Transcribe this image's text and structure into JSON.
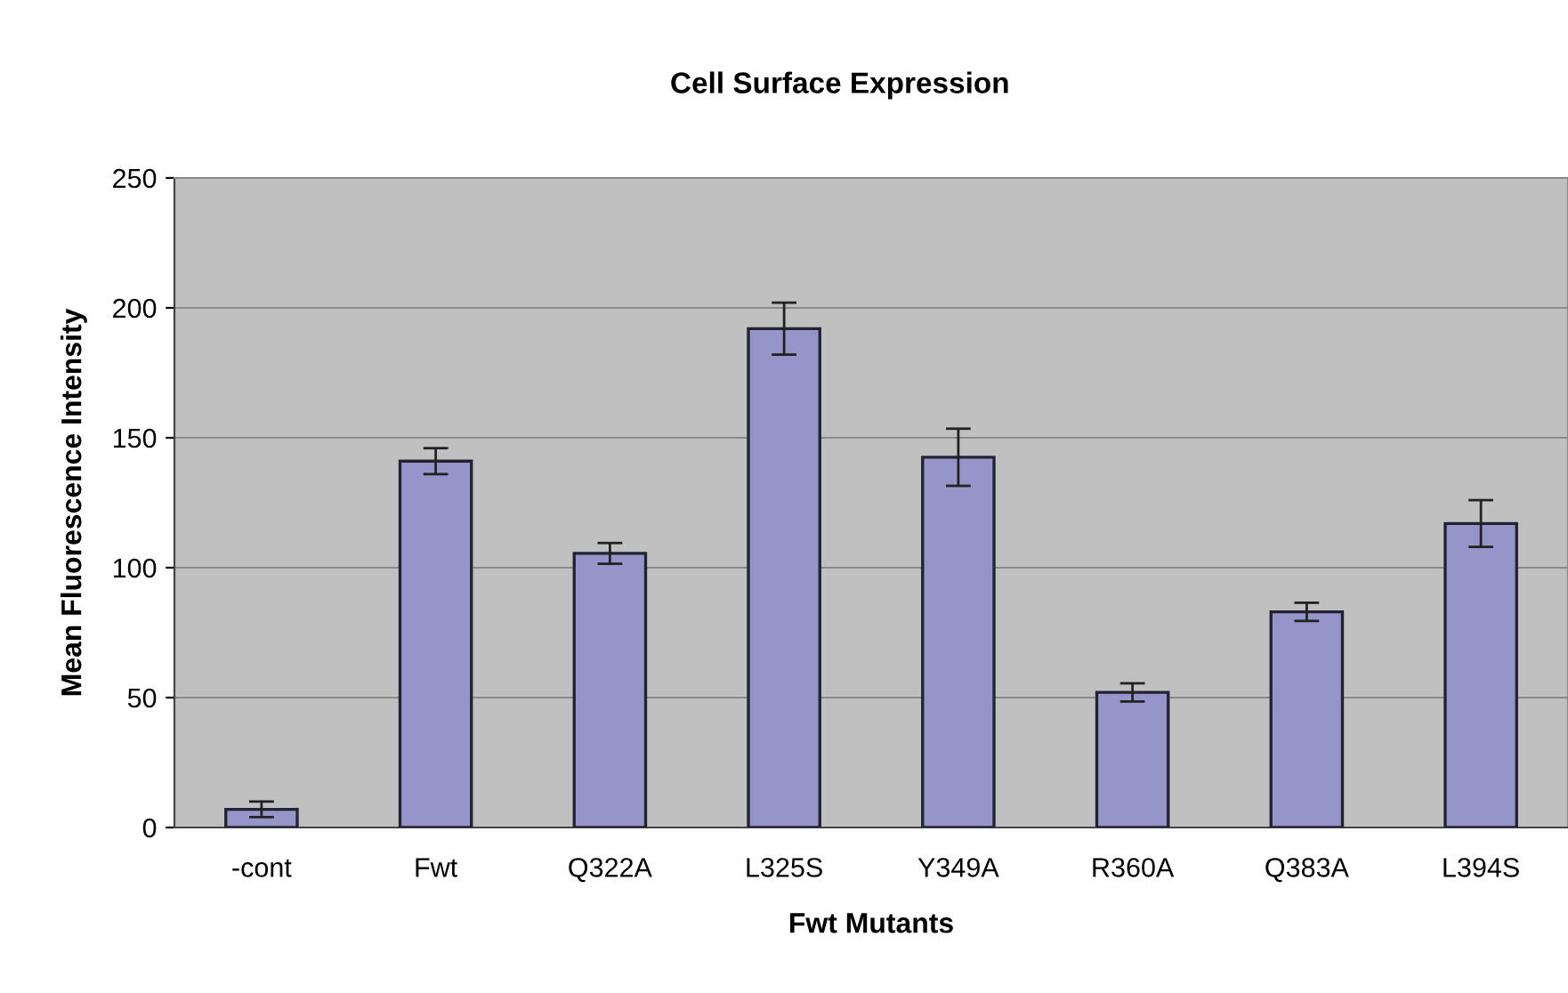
{
  "chart_data": {
    "type": "bar",
    "title": "Cell Surface Expression",
    "xlabel": "Fwt Mutants",
    "ylabel": "Mean Fluorescence Intensity",
    "categories": [
      "-cont",
      "Fwt",
      "Q322A",
      "L325S",
      "Y349A",
      "R360A",
      "Q383A",
      "L394S"
    ],
    "values": [
      7,
      141,
      105.5,
      192,
      142.5,
      52,
      83,
      117
    ],
    "errors": [
      3,
      5,
      4,
      10,
      11,
      3.5,
      3.5,
      9
    ],
    "color": "#9595c9",
    "ylim": [
      0,
      250
    ],
    "yticks": [
      0,
      50,
      100,
      150,
      200,
      250
    ],
    "grid": "y",
    "legend": false
  }
}
